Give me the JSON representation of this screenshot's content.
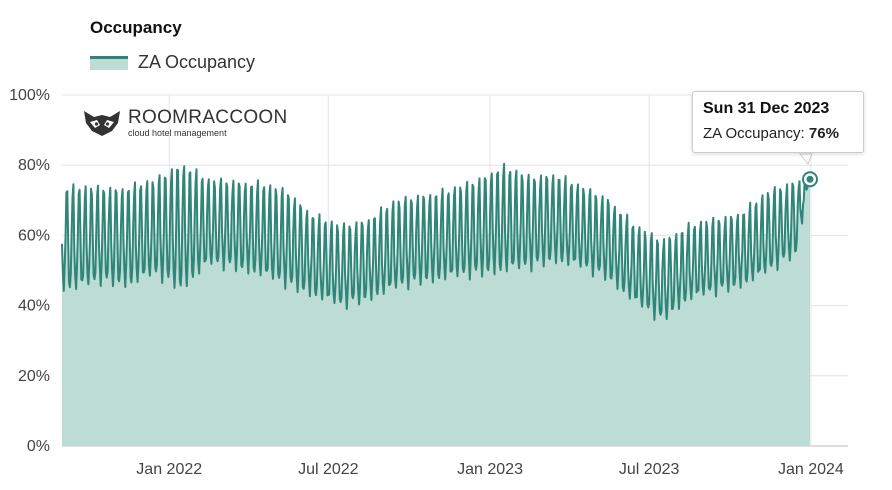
{
  "title": "Occupancy",
  "logo": {
    "name": "ROOMRACCOON",
    "tagline": "cloud hotel management"
  },
  "tooltip": {
    "date": "Sun 31 Dec 2023",
    "series": "ZA Occupancy:",
    "value": "76%"
  },
  "colors": {
    "line": "#2f8578",
    "fill": "#bcdcd5",
    "grid": "#e4e4e4"
  },
  "chart_data": {
    "type": "area",
    "title": "Occupancy",
    "legend_position": "top-left",
    "grid": true,
    "xlim": [
      "2021-09-01",
      "2023-12-31"
    ],
    "ylim": [
      0,
      100
    ],
    "y_ticks": [
      "0%",
      "20%",
      "40%",
      "60%",
      "80%",
      "100%"
    ],
    "x_ticks": [
      {
        "label": "Jan 2022",
        "date": "2022-01-01"
      },
      {
        "label": "Jul 2022",
        "date": "2022-07-01"
      },
      {
        "label": "Jan 2023",
        "date": "2023-01-01"
      },
      {
        "label": "Jul 2023",
        "date": "2023-07-01"
      },
      {
        "label": "Jan 2024",
        "date": "2024-01-01"
      }
    ],
    "series": [
      {
        "name": "ZA Occupancy",
        "x": [
          "2021-09",
          "2021-10",
          "2021-11",
          "2021-12",
          "2022-01",
          "2022-02",
          "2022-03",
          "2022-04",
          "2022-05",
          "2022-06",
          "2022-07",
          "2022-08",
          "2022-09",
          "2022-10",
          "2022-11",
          "2022-12",
          "2023-01",
          "2023-02",
          "2023-03",
          "2023-04",
          "2023-05",
          "2023-06",
          "2023-07",
          "2023-08",
          "2023-09",
          "2023-10",
          "2023-11",
          "2023-12",
          "2023-12-31"
        ],
        "values": [
          57,
          59,
          59,
          60,
          58,
          62,
          62,
          60,
          57,
          55,
          52,
          53,
          56,
          58,
          59,
          60,
          60,
          61,
          63,
          61,
          59,
          51,
          47,
          52,
          54,
          56,
          60,
          64,
          76
        ],
        "weekly_min": [
          45,
          47,
          46,
          49,
          45,
          52,
          51,
          49,
          46,
          43,
          40,
          42,
          45,
          47,
          48,
          49,
          50,
          51,
          53,
          51,
          48,
          41,
          36,
          42,
          44,
          46,
          50,
          55,
          76
        ],
        "weekly_max": [
          73,
          73,
          73,
          75,
          80,
          75,
          75,
          74,
          72,
          65,
          62,
          64,
          69,
          71,
          72,
          75,
          79,
          76,
          77,
          73,
          70,
          62,
          58,
          62,
          64,
          66,
          72,
          75,
          76
        ]
      }
    ]
  }
}
